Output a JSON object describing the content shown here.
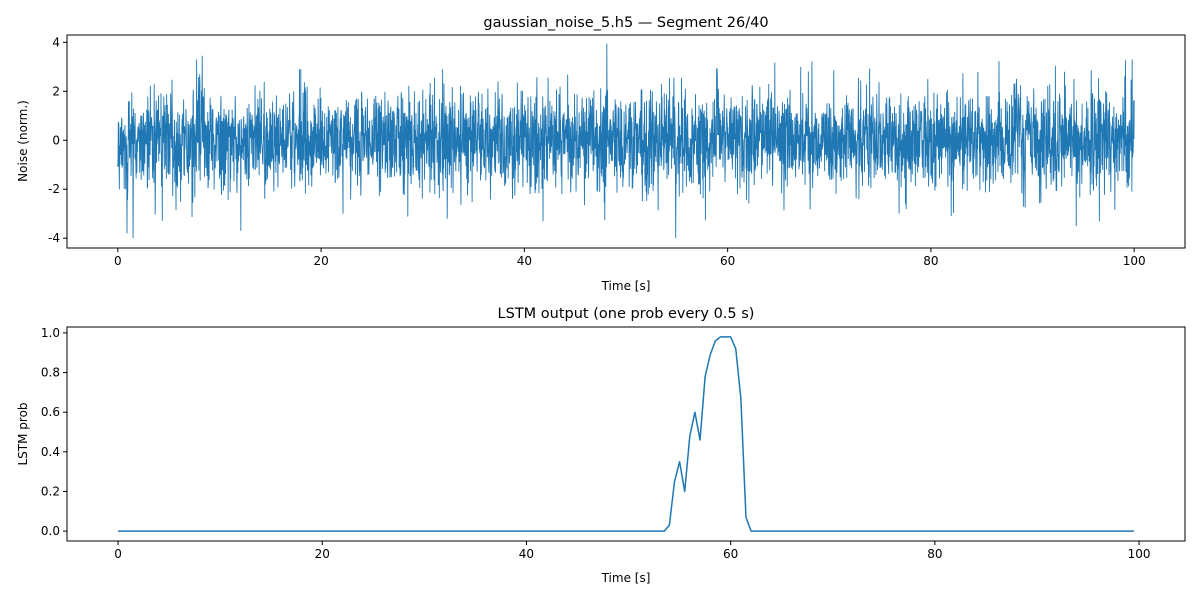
{
  "chart_data": [
    {
      "type": "line",
      "title": "gaussian_noise_5.h5 — Segment 26/40",
      "xlabel": "Time [s]",
      "ylabel": "Noise (norm.)",
      "xlim": [
        -5,
        105
      ],
      "ylim": [
        -4.4,
        4.3
      ],
      "x_ticks": [
        0,
        20,
        40,
        60,
        80,
        100
      ],
      "y_ticks": [
        -4,
        -2,
        0,
        2,
        4
      ],
      "grid": false,
      "color": "#1f77b4",
      "series": [
        {
          "x_start": 0,
          "x_end": 100,
          "distribution": "gaussian",
          "mean": 0.0,
          "std": 1.0,
          "samples": 4000,
          "peaks": [
            {
              "x": 0.9,
              "y": -3.8
            },
            {
              "x": 1.5,
              "y": -4.0
            },
            {
              "x": 8.3,
              "y": 3.45
            },
            {
              "x": 12.1,
              "y": -3.7
            },
            {
              "x": 48.1,
              "y": 3.95
            },
            {
              "x": 54.9,
              "y": -4.0
            },
            {
              "x": 94.3,
              "y": -3.5
            },
            {
              "x": 99.8,
              "y": 3.3
            },
            {
              "x": 18.0,
              "y": 2.9
            },
            {
              "x": 32.4,
              "y": -3.2
            },
            {
              "x": 67.2,
              "y": 3.0
            },
            {
              "x": 82.0,
              "y": -3.1
            }
          ]
        }
      ]
    },
    {
      "type": "line",
      "title": "LSTM output (one prob every 0.5 s)",
      "xlabel": "Time [s]",
      "ylabel": "LSTM prob",
      "xlim": [
        -5,
        104.5
      ],
      "ylim": [
        -0.05,
        1.03
      ],
      "x_ticks": [
        0,
        20,
        40,
        60,
        80,
        100
      ],
      "y_ticks": [
        0.0,
        0.2,
        0.4,
        0.6,
        0.8,
        1.0
      ],
      "grid": false,
      "color": "#1f77b4",
      "series": [
        {
          "x": [
            0,
            53.5,
            54.0,
            54.5,
            55.0,
            55.5,
            56.0,
            56.5,
            57.0,
            57.5,
            58.0,
            58.5,
            59.0,
            59.5,
            60.0,
            60.5,
            61.0,
            61.5,
            62.0,
            99.5
          ],
          "values": [
            0.0,
            0.0,
            0.03,
            0.25,
            0.35,
            0.2,
            0.48,
            0.6,
            0.46,
            0.78,
            0.89,
            0.96,
            0.98,
            0.98,
            0.98,
            0.92,
            0.67,
            0.07,
            0.0,
            0.0
          ]
        }
      ]
    }
  ]
}
